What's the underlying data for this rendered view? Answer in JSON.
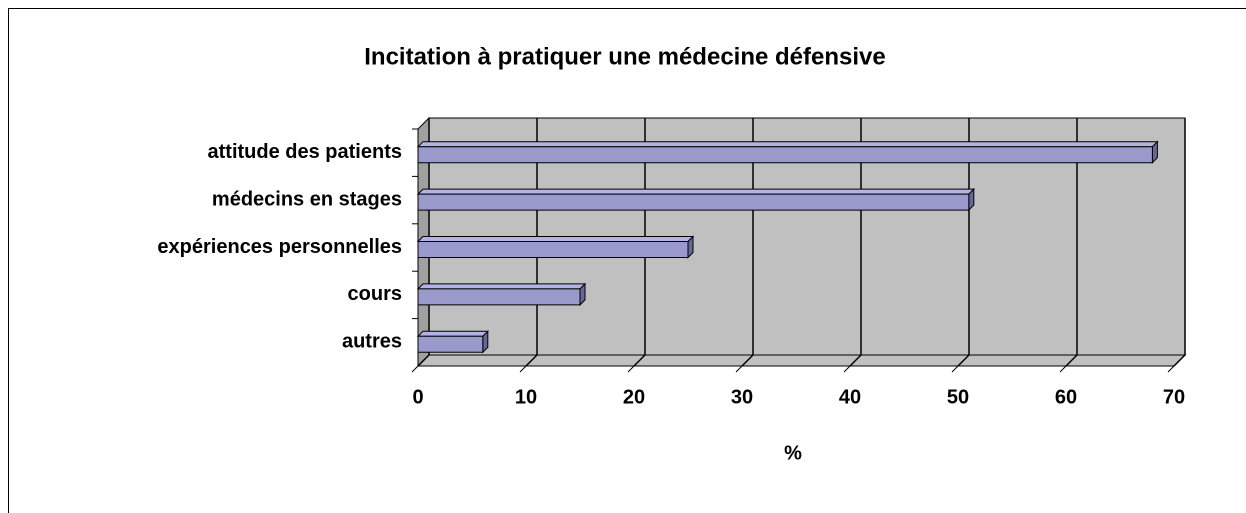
{
  "chart_data": {
    "type": "bar3d_horizontal",
    "title": "Incitation à pratiquer une médecine défensive",
    "categories": [
      "attitude des patients",
      "médecins en stages",
      "expériences personnelles",
      "cours",
      "autres"
    ],
    "values": [
      68,
      51,
      25,
      15,
      6
    ],
    "color": "#9999cc",
    "xlim": [
      0,
      70
    ],
    "xticks": [
      0,
      10,
      20,
      30,
      40,
      50,
      60,
      70
    ],
    "xlabel": "%",
    "grid": true
  }
}
